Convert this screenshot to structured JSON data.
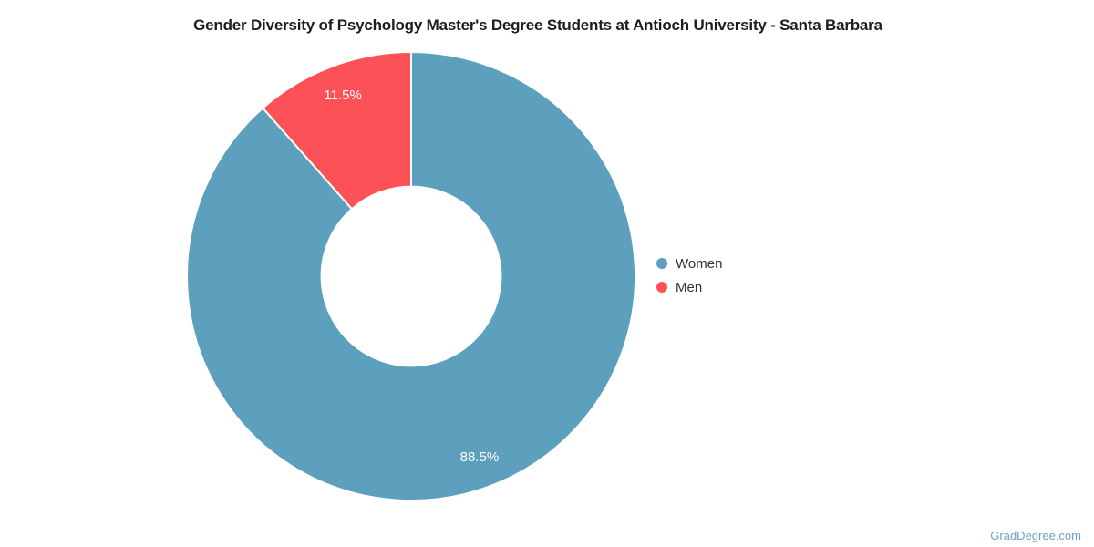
{
  "chart_data": {
    "type": "pie",
    "subtype": "donut",
    "title": "Gender Diversity of Psychology Master's Degree Students at Antioch University - Santa Barbara",
    "categories": [
      "Women",
      "Men"
    ],
    "values": [
      88.5,
      11.5
    ],
    "slices": [
      {
        "name": "Women",
        "value": 88.5,
        "display": "88.5%",
        "color": "#5CA0BE"
      },
      {
        "name": "Men",
        "value": 11.5,
        "display": "11.5%",
        "color": "#FC5257"
      }
    ],
    "start_angle_deg": 0,
    "direction": "clockwise",
    "inner_radius_pct": 40,
    "slice_border_color": "#FFFFFF",
    "label_color": "#FFFFFF",
    "legend_position": "right",
    "legend_text_color": "#333333",
    "title_color": "#1D1D1D"
  },
  "watermark": {
    "text": "GradDegree.com",
    "color": "#6FA1C0"
  }
}
